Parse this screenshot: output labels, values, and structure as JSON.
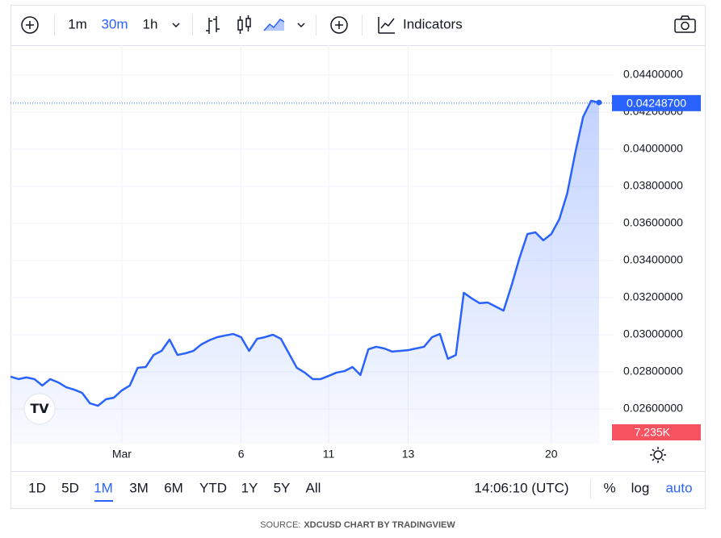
{
  "toolbar": {
    "intervals": [
      "1m",
      "30m",
      "1h"
    ],
    "indicators": "Indicators"
  },
  "chart_data": {
    "type": "line",
    "categories": [
      null,
      null,
      null,
      null,
      null,
      null,
      null,
      null,
      null,
      null,
      null,
      null,
      null,
      null,
      "Mar",
      null,
      null,
      null,
      null,
      null,
      null,
      null,
      null,
      null,
      null,
      null,
      null,
      null,
      null,
      "6",
      null,
      null,
      null,
      null,
      null,
      null,
      null,
      null,
      null,
      null,
      "11",
      null,
      null,
      null,
      null,
      null,
      null,
      null,
      null,
      null,
      "13",
      null,
      null,
      null,
      null,
      null,
      null,
      null,
      null,
      null,
      null,
      null,
      null,
      null,
      null,
      null,
      null,
      null,
      "20",
      null,
      null,
      null,
      null,
      null,
      null
    ],
    "series": [
      {
        "name": "XDCUSD",
        "color": "#2962ff",
        "values": [
          0.02774,
          0.02761,
          0.0277,
          0.02761,
          0.02726,
          0.02761,
          0.02743,
          0.02717,
          0.02704,
          0.02687,
          0.0263,
          0.02617,
          0.02652,
          0.02661,
          0.027,
          0.02726,
          0.02822,
          0.02826,
          0.02891,
          0.02913,
          0.02974,
          0.02891,
          0.029,
          0.02913,
          0.02948,
          0.0297,
          0.02987,
          0.02996,
          0.03004,
          0.02987,
          0.02913,
          0.02978,
          0.02987,
          0.03,
          0.02978,
          0.029,
          0.02822,
          0.02796,
          0.02761,
          0.02761,
          0.02778,
          0.02796,
          0.02804,
          0.02826,
          0.02783,
          0.02922,
          0.02935,
          0.02926,
          0.02909,
          0.02913,
          0.02917,
          0.02926,
          0.02935,
          0.02987,
          0.03004,
          0.0287,
          0.02891,
          0.03226,
          0.03196,
          0.0317,
          0.03174,
          0.03152,
          0.0313,
          0.03265,
          0.03413,
          0.03543,
          0.03552,
          0.03509,
          0.03543,
          0.03622,
          0.03761,
          0.03978,
          0.04174,
          0.04261,
          0.04252
        ]
      }
    ],
    "ylim": [
      0.02413,
      0.04561
    ],
    "yticks": [
      {
        "value": 0.026,
        "label": "0.02600000"
      },
      {
        "value": 0.028,
        "label": "0.02800000"
      },
      {
        "value": 0.03,
        "label": "0.03000000"
      },
      {
        "value": 0.032,
        "label": "0.03200000"
      },
      {
        "value": 0.034,
        "label": "0.03400000"
      },
      {
        "value": 0.036,
        "label": "0.03600000"
      },
      {
        "value": 0.038,
        "label": "0.03800000"
      },
      {
        "value": 0.04,
        "label": "0.04000000"
      },
      {
        "value": 0.042,
        "label": "0.04200000"
      },
      {
        "value": 0.044,
        "label": "0.04400000"
      }
    ],
    "grid": true,
    "last_price": 0.042487,
    "last_price_label": "0.04248700",
    "volume_label": "7.235K"
  },
  "range_bar": {
    "ranges": [
      "1D",
      "5D",
      "1M",
      "3M",
      "6M",
      "YTD",
      "1Y",
      "5Y",
      "All"
    ],
    "time": "14:06:10 (UTC)",
    "percent": "%",
    "log": "log",
    "auto": "auto"
  },
  "footer": {
    "source": "SOURCE:",
    "credit": "XDCUSD CHART BY TRADINGVIEW"
  }
}
